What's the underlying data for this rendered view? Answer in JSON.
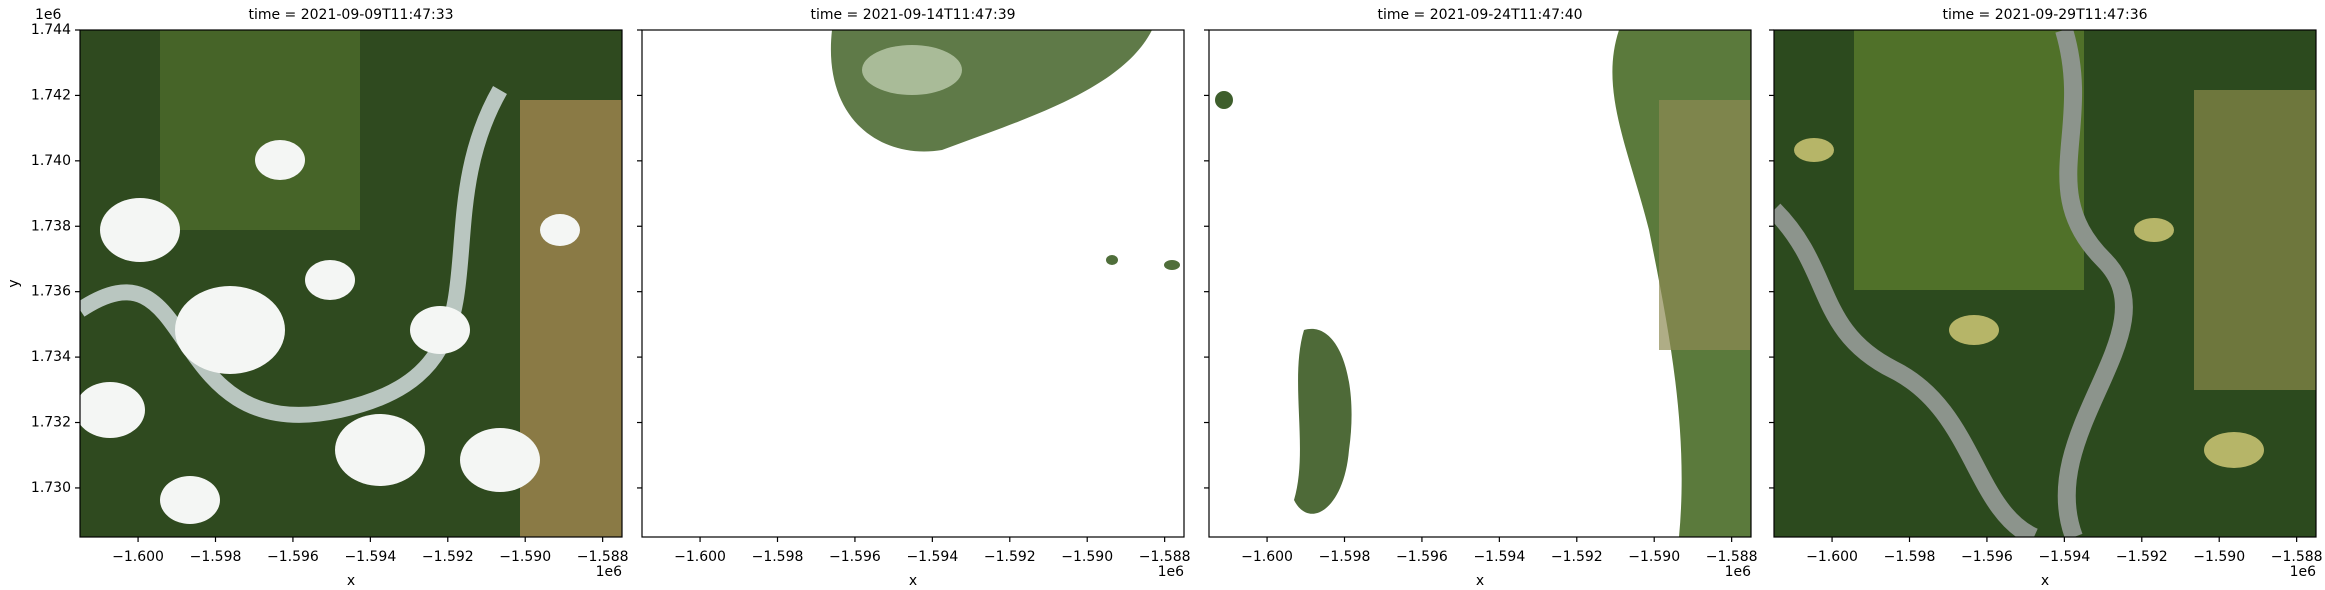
{
  "chart_data": [
    {
      "type": "image",
      "title": "time = 2021-09-09T11:47:33",
      "xlabel": "x",
      "ylabel": "y",
      "x_offset": "1e6",
      "y_offset": "1e6",
      "xlim": [
        -1.6015,
        -1.5875
      ],
      "ylim": [
        1.7285,
        1.744
      ],
      "xticks": [
        {
          "value": -1.6,
          "label": "−1.600"
        },
        {
          "value": -1.598,
          "label": "−1.598"
        },
        {
          "value": -1.596,
          "label": "−1.596"
        },
        {
          "value": -1.594,
          "label": "−1.594"
        },
        {
          "value": -1.592,
          "label": "−1.592"
        },
        {
          "value": -1.59,
          "label": "−1.590"
        },
        {
          "value": -1.588,
          "label": "−1.588"
        }
      ],
      "yticks": [
        {
          "value": 1.73,
          "label": "1.730"
        },
        {
          "value": 1.732,
          "label": "1.732"
        },
        {
          "value": 1.734,
          "label": "1.734"
        },
        {
          "value": 1.736,
          "label": "1.736"
        },
        {
          "value": 1.738,
          "label": "1.738"
        },
        {
          "value": 1.74,
          "label": "1.740"
        },
        {
          "value": 1.742,
          "label": "1.742"
        },
        {
          "value": 1.744,
          "label": "1.744"
        }
      ]
    },
    {
      "type": "image",
      "title": "time = 2021-09-14T11:47:39",
      "xlabel": "x",
      "x_offset": "1e6",
      "xlim": [
        -1.6015,
        -1.5875
      ],
      "ylim": [
        1.7285,
        1.744
      ],
      "xticks": [
        {
          "value": -1.6,
          "label": "−1.600"
        },
        {
          "value": -1.598,
          "label": "−1.598"
        },
        {
          "value": -1.596,
          "label": "−1.596"
        },
        {
          "value": -1.594,
          "label": "−1.594"
        },
        {
          "value": -1.592,
          "label": "−1.592"
        },
        {
          "value": -1.59,
          "label": "−1.590"
        },
        {
          "value": -1.588,
          "label": "−1.588"
        }
      ],
      "yticks": [
        1.73,
        1.732,
        1.734,
        1.736,
        1.738,
        1.74,
        1.742,
        1.744
      ]
    },
    {
      "type": "image",
      "title": "time = 2021-09-24T11:47:40",
      "xlabel": "x",
      "x_offset": "1e6",
      "xlim": [
        -1.6015,
        -1.5875
      ],
      "ylim": [
        1.7285,
        1.744
      ],
      "xticks": [
        {
          "value": -1.6,
          "label": "−1.600"
        },
        {
          "value": -1.598,
          "label": "−1.598"
        },
        {
          "value": -1.596,
          "label": "−1.596"
        },
        {
          "value": -1.594,
          "label": "−1.594"
        },
        {
          "value": -1.592,
          "label": "−1.592"
        },
        {
          "value": -1.59,
          "label": "−1.590"
        },
        {
          "value": -1.588,
          "label": "−1.588"
        }
      ],
      "yticks": [
        1.73,
        1.732,
        1.734,
        1.736,
        1.738,
        1.74,
        1.742,
        1.744
      ]
    },
    {
      "type": "image",
      "title": "time = 2021-09-29T11:47:36",
      "xlabel": "x",
      "x_offset": "1e6",
      "xlim": [
        -1.6015,
        -1.5875
      ],
      "ylim": [
        1.7285,
        1.744
      ],
      "xticks": [
        {
          "value": -1.6,
          "label": "−1.600"
        },
        {
          "value": -1.598,
          "label": "−1.598"
        },
        {
          "value": -1.596,
          "label": "−1.596"
        },
        {
          "value": -1.594,
          "label": "−1.594"
        },
        {
          "value": -1.592,
          "label": "−1.592"
        },
        {
          "value": -1.59,
          "label": "−1.590"
        },
        {
          "value": -1.588,
          "label": "−1.588"
        }
      ],
      "yticks": [
        1.73,
        1.732,
        1.734,
        1.736,
        1.738,
        1.74,
        1.742,
        1.744
      ]
    }
  ]
}
